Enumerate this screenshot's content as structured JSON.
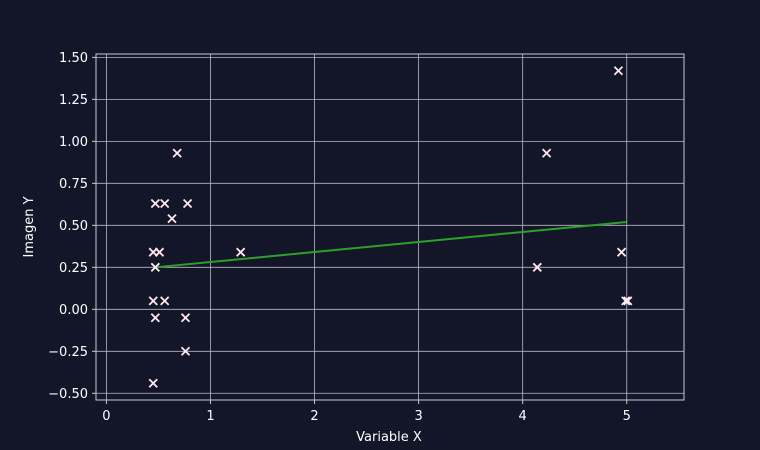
{
  "chart_data": {
    "type": "scatter",
    "title": "",
    "xlabel": "Variable X",
    "ylabel": "Imagen Y",
    "xlim": [
      -0.1,
      5.55
    ],
    "ylim": [
      -0.54,
      1.52
    ],
    "xticks": [
      0,
      1,
      2,
      3,
      4,
      5
    ],
    "yticks": [
      -0.5,
      -0.25,
      0.0,
      0.25,
      0.5,
      0.75,
      1.0,
      1.25,
      1.5
    ],
    "xtick_labels": [
      "0",
      "1",
      "2",
      "3",
      "4",
      "5"
    ],
    "ytick_labels": [
      "−0.50",
      "−0.25",
      "0.00",
      "0.25",
      "0.50",
      "0.75",
      "1.00",
      "1.25",
      "1.50"
    ],
    "grid": true,
    "series": [
      {
        "marker": "x",
        "color": "#ffe8f0",
        "points": [
          {
            "x": 0.45,
            "y": -0.44
          },
          {
            "x": 0.47,
            "y": -0.05
          },
          {
            "x": 0.45,
            "y": 0.05
          },
          {
            "x": 0.56,
            "y": 0.05
          },
          {
            "x": 0.47,
            "y": 0.25
          },
          {
            "x": 0.45,
            "y": 0.34
          },
          {
            "x": 0.51,
            "y": 0.34
          },
          {
            "x": 0.47,
            "y": 0.63
          },
          {
            "x": 0.56,
            "y": 0.63
          },
          {
            "x": 0.63,
            "y": 0.54
          },
          {
            "x": 0.68,
            "y": 0.93
          },
          {
            "x": 0.76,
            "y": -0.05
          },
          {
            "x": 0.76,
            "y": -0.25
          },
          {
            "x": 0.78,
            "y": 0.63
          },
          {
            "x": 1.29,
            "y": 0.34
          },
          {
            "x": 4.14,
            "y": 0.25
          },
          {
            "x": 4.23,
            "y": 0.93
          },
          {
            "x": 4.92,
            "y": 1.42
          },
          {
            "x": 4.95,
            "y": 0.34
          },
          {
            "x": 4.99,
            "y": 0.05
          },
          {
            "x": 5.01,
            "y": 0.05
          }
        ]
      }
    ],
    "trend_line": {
      "color": "#2ca02c",
      "x": [
        0.47,
        5.0
      ],
      "y": [
        0.25,
        0.52
      ]
    },
    "colors": {
      "background": "#131628",
      "axes": "#c8c8d0",
      "grid": "#b8b8c4",
      "text": "#ffffff"
    }
  }
}
